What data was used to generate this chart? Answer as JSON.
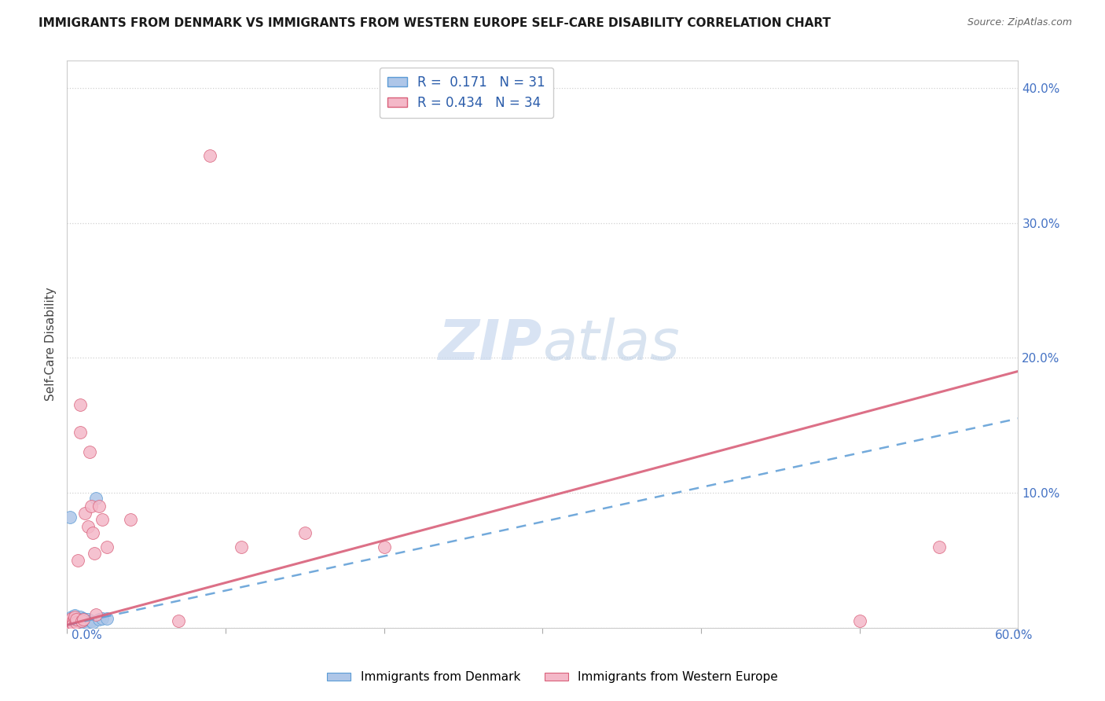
{
  "title": "IMMIGRANTS FROM DENMARK VS IMMIGRANTS FROM WESTERN EUROPE SELF-CARE DISABILITY CORRELATION CHART",
  "source": "Source: ZipAtlas.com",
  "ylabel": "Self-Care Disability",
  "xlim": [
    0,
    0.6
  ],
  "ylim": [
    0,
    0.42
  ],
  "denmark_R": 0.171,
  "denmark_N": 31,
  "western_R": 0.434,
  "western_N": 34,
  "denmark_color": "#aec6e8",
  "western_color": "#f4b8c8",
  "denmark_line_color": "#5b9bd5",
  "western_line_color": "#d9607a",
  "legend_R_color": "#2a5caa",
  "watermark_color": "#c8d8ee",
  "dk_line_end_y": 0.155,
  "we_line_end_y": 0.19,
  "dk_line_start_y": 0.002,
  "we_line_start_y": 0.002,
  "denmark_x": [
    0.001,
    0.002,
    0.002,
    0.003,
    0.003,
    0.003,
    0.004,
    0.004,
    0.005,
    0.005,
    0.005,
    0.006,
    0.006,
    0.007,
    0.007,
    0.008,
    0.008,
    0.009,
    0.01,
    0.01,
    0.011,
    0.012,
    0.013,
    0.015,
    0.016,
    0.018,
    0.02,
    0.022,
    0.025,
    0.002,
    0.004
  ],
  "denmark_y": [
    0.004,
    0.003,
    0.005,
    0.004,
    0.006,
    0.008,
    0.005,
    0.003,
    0.004,
    0.006,
    0.009,
    0.003,
    0.005,
    0.004,
    0.007,
    0.005,
    0.008,
    0.004,
    0.005,
    0.007,
    0.006,
    0.004,
    0.006,
    0.005,
    0.004,
    0.096,
    0.006,
    0.007,
    0.007,
    0.082,
    0.003
  ],
  "western_x": [
    0.001,
    0.002,
    0.002,
    0.003,
    0.003,
    0.004,
    0.004,
    0.005,
    0.005,
    0.006,
    0.006,
    0.007,
    0.008,
    0.008,
    0.009,
    0.01,
    0.011,
    0.013,
    0.014,
    0.015,
    0.016,
    0.017,
    0.018,
    0.02,
    0.022,
    0.025,
    0.04,
    0.07,
    0.09,
    0.11,
    0.15,
    0.2,
    0.5,
    0.55
  ],
  "western_y": [
    0.004,
    0.003,
    0.005,
    0.004,
    0.007,
    0.005,
    0.003,
    0.006,
    0.008,
    0.004,
    0.006,
    0.05,
    0.165,
    0.145,
    0.005,
    0.006,
    0.085,
    0.075,
    0.13,
    0.09,
    0.07,
    0.055,
    0.01,
    0.09,
    0.08,
    0.06,
    0.08,
    0.005,
    0.35,
    0.06,
    0.07,
    0.06,
    0.005,
    0.06
  ]
}
